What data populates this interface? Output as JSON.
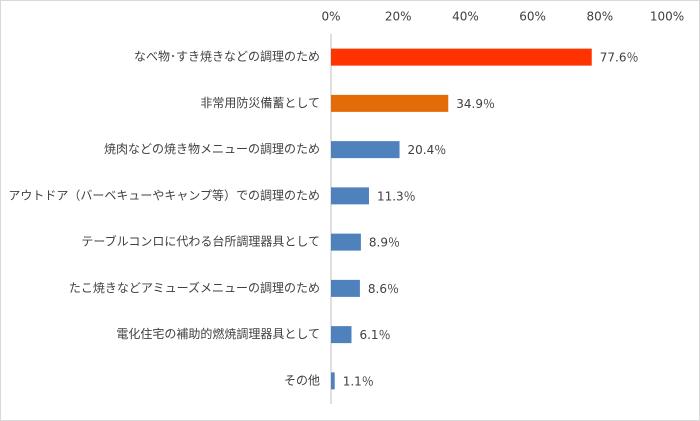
{
  "chart_data": {
    "type": "barh",
    "categories": [
      "なべ物･すき焼きなどの調理のため",
      "非常用防災備蓄として",
      "焼肉などの焼き物メニューの調理のため",
      "アウトドア（バーベキューやキャンプ等）での調理のため",
      "テーブルコンロに代わる台所調理器具として",
      "たこ焼きなどアミューズメニューの調理のため",
      "電化住宅の補助的燃焼調理器具として",
      "その他"
    ],
    "values": [
      77.6,
      34.9,
      20.4,
      11.3,
      8.9,
      8.6,
      6.1,
      1.1
    ],
    "value_labels": [
      "77.6％",
      "34.9％",
      "20.4％",
      "11.3％",
      "8.9％",
      "8.6％",
      "6.1％",
      "1.1％"
    ],
    "colors": [
      "#ff3300",
      "#e36c09",
      "#4f81bd",
      "#4f81bd",
      "#4f81bd",
      "#4f81bd",
      "#4f81bd",
      "#4f81bd"
    ],
    "xlim": [
      0,
      100
    ],
    "xticks": [
      {
        "value": 0,
        "label": "0%"
      },
      {
        "value": 20,
        "label": "20%"
      },
      {
        "value": 40,
        "label": "40%"
      },
      {
        "value": 60,
        "label": "60%"
      },
      {
        "value": 80,
        "label": "80%"
      },
      {
        "value": 100,
        "label": "100%"
      }
    ],
    "grid": false
  }
}
